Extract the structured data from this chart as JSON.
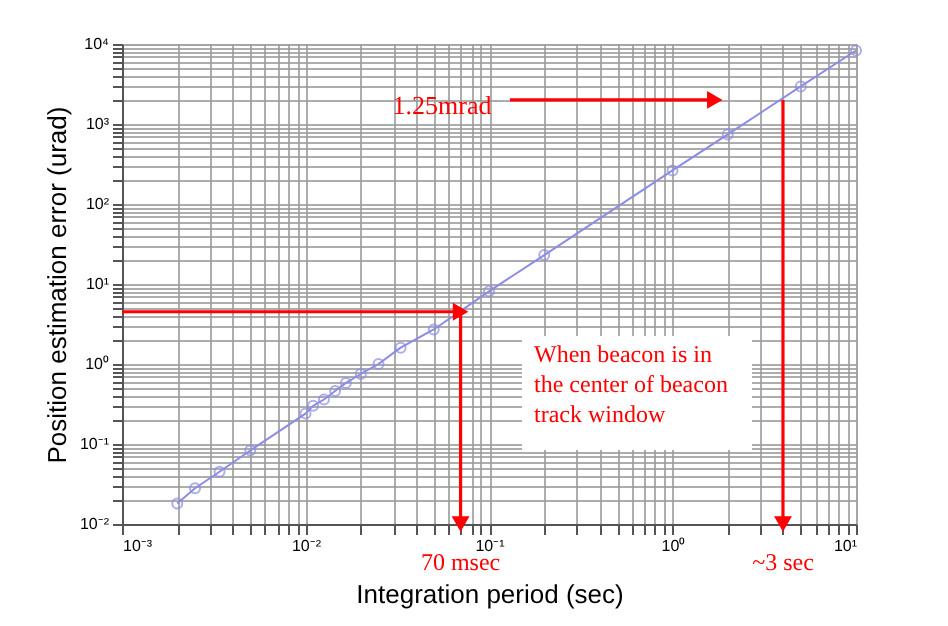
{
  "chart_data": {
    "type": "line",
    "xlabel": "Integration period (sec)",
    "ylabel": "Position estimation error (urad)",
    "x": [
      0.002,
      0.0025,
      0.0034,
      0.005,
      0.01,
      0.011,
      0.0126,
      0.0145,
      0.0166,
      0.02,
      0.025,
      0.033,
      0.05,
      0.1,
      0.2,
      1,
      2,
      5,
      10
    ],
    "series": [
      {
        "color": "#8c8ce6",
        "values": [
          0.018,
          0.028,
          0.045,
          0.083,
          0.24,
          0.3,
          0.36,
          0.46,
          0.58,
          0.75,
          1.0,
          1.6,
          2.7,
          8.1,
          23,
          263,
          740,
          2950,
          8300
        ]
      },
      {
        "type": "line",
        "marker": "triangle",
        "color": "#ff0000",
        "x": [
          0.13,
          1.7
        ],
        "values": [
          2000,
          2000
        ]
      },
      {
        "type": "line",
        "marker": "triangle",
        "color": "#ff0000",
        "x": [
          0.001,
          0.07
        ],
        "values": [
          4.5,
          4.5
        ]
      },
      {
        "type": "line",
        "marker": "triangle",
        "color": "#ff0000",
        "x": [
          0.07,
          0.07
        ],
        "values": [
          4.5,
          0.01
        ]
      },
      {
        "type": "line",
        "marker": "triangle",
        "color": "#ff0000",
        "x": [
          4,
          4
        ],
        "values": [
          2000,
          0.01
        ]
      }
    ],
    "log": "xy",
    "marker": "circle",
    "line_style": "solid",
    "grid": true,
    "xlim": [
      0.001,
      10
    ],
    "ylim": [
      0.01,
      10000
    ],
    "xticks": [
      {
        "value": 0.001,
        "label": "10⁻³"
      },
      {
        "value": 0.002,
        "label": null
      },
      {
        "value": 0.003,
        "label": null
      },
      {
        "value": 0.004,
        "label": null
      },
      {
        "value": 0.005,
        "label": null
      },
      {
        "value": 0.006,
        "label": null
      },
      {
        "value": 0.007,
        "label": null
      },
      {
        "value": 0.008,
        "label": null
      },
      {
        "value": 0.009,
        "label": null
      },
      {
        "value": 0.01,
        "label": "10⁻²"
      },
      {
        "value": 0.02,
        "label": null
      },
      {
        "value": 0.03,
        "label": null
      },
      {
        "value": 0.04,
        "label": null
      },
      {
        "value": 0.05,
        "label": null
      },
      {
        "value": 0.06,
        "label": null
      },
      {
        "value": 0.07,
        "label": null
      },
      {
        "value": 0.08,
        "label": null
      },
      {
        "value": 0.09,
        "label": null
      },
      {
        "value": 0.1,
        "label": "10⁻¹"
      },
      {
        "value": 0.2,
        "label": null
      },
      {
        "value": 0.3,
        "label": null
      },
      {
        "value": 0.4,
        "label": null
      },
      {
        "value": 0.5,
        "label": null
      },
      {
        "value": 0.6,
        "label": null
      },
      {
        "value": 0.7,
        "label": null
      },
      {
        "value": 0.8,
        "label": null
      },
      {
        "value": 0.9,
        "label": null
      },
      {
        "value": 1,
        "label": "10⁰"
      },
      {
        "value": 2,
        "label": null
      },
      {
        "value": 3,
        "label": null
      },
      {
        "value": 4,
        "label": null
      },
      {
        "value": 5,
        "label": null
      },
      {
        "value": 6,
        "label": null
      },
      {
        "value": 7,
        "label": null
      },
      {
        "value": 8,
        "label": null
      },
      {
        "value": 9,
        "label": null
      },
      {
        "value": 10,
        "label": "10¹"
      }
    ],
    "yticks": [
      {
        "value": 0.01,
        "label": "10⁻²"
      },
      {
        "value": 0.02,
        "label": null
      },
      {
        "value": 0.03,
        "label": null
      },
      {
        "value": 0.04,
        "label": null
      },
      {
        "value": 0.05,
        "label": null
      },
      {
        "value": 0.06,
        "label": null
      },
      {
        "value": 0.07,
        "label": null
      },
      {
        "value": 0.08,
        "label": null
      },
      {
        "value": 0.09,
        "label": null
      },
      {
        "value": 0.1,
        "label": "10⁻¹"
      },
      {
        "value": 0.2,
        "label": null
      },
      {
        "value": 0.3,
        "label": null
      },
      {
        "value": 0.4,
        "label": null
      },
      {
        "value": 0.5,
        "label": null
      },
      {
        "value": 0.6,
        "label": null
      },
      {
        "value": 0.7,
        "label": null
      },
      {
        "value": 0.8,
        "label": null
      },
      {
        "value": 0.9,
        "label": null
      },
      {
        "value": 1,
        "label": "10⁰"
      },
      {
        "value": 2,
        "label": null
      },
      {
        "value": 3,
        "label": null
      },
      {
        "value": 4,
        "label": null
      },
      {
        "value": 5,
        "label": null
      },
      {
        "value": 6,
        "label": null
      },
      {
        "value": 7,
        "label": null
      },
      {
        "value": 8,
        "label": null
      },
      {
        "value": 9,
        "label": null
      },
      {
        "value": 10,
        "label": "10¹"
      },
      {
        "value": 20,
        "label": null
      },
      {
        "value": 30,
        "label": null
      },
      {
        "value": 40,
        "label": null
      },
      {
        "value": 50,
        "label": null
      },
      {
        "value": 60,
        "label": null
      },
      {
        "value": 70,
        "label": null
      },
      {
        "value": 80,
        "label": null
      },
      {
        "value": 90,
        "label": null
      },
      {
        "value": 100,
        "label": "10²"
      },
      {
        "value": 200,
        "label": null
      },
      {
        "value": 300,
        "label": null
      },
      {
        "value": 400,
        "label": null
      },
      {
        "value": 500,
        "label": null
      },
      {
        "value": 600,
        "label": null
      },
      {
        "value": 700,
        "label": null
      },
      {
        "value": 800,
        "label": null
      },
      {
        "value": 900,
        "label": null
      },
      {
        "value": 1000,
        "label": "10³"
      },
      {
        "value": 2000,
        "label": null
      },
      {
        "value": 3000,
        "label": null
      },
      {
        "value": 4000,
        "label": null
      },
      {
        "value": 5000,
        "label": null
      },
      {
        "value": 6000,
        "label": null
      },
      {
        "value": 7000,
        "label": null
      },
      {
        "value": 8000,
        "label": null
      },
      {
        "value": 9000,
        "label": null
      },
      {
        "value": 10000,
        "label": "10⁴"
      }
    ],
    "annotations": [
      "1.25mrad",
      {
        "text": "70 msec",
        "x": 0.07,
        "y": 0.01
      },
      {
        "text": "~3 sec",
        "x": 4,
        "y": 0.01
      },
      "When beacon is in\nthe center of beacon\ntrack window"
    ]
  }
}
